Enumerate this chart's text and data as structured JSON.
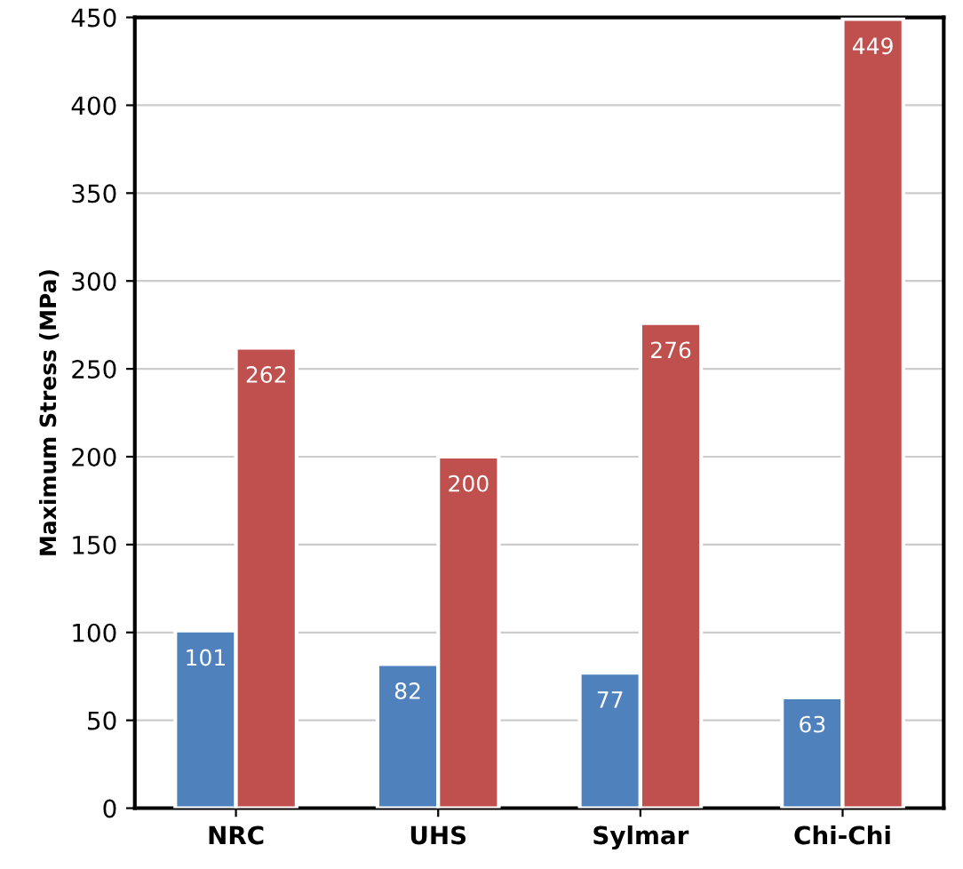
{
  "chart_data": {
    "type": "bar",
    "ylabel": "Maximum Stress (MPa)",
    "categories": [
      "NRC",
      "UHS",
      "Sylmar",
      "Chi-Chi"
    ],
    "series": [
      {
        "color": "#4f81bd",
        "values": [
          101,
          82,
          77,
          63
        ]
      },
      {
        "color": "#c0504d",
        "values": [
          262,
          200,
          276,
          449
        ]
      }
    ],
    "ylim": [
      0,
      450
    ],
    "yticks": [
      0,
      50,
      100,
      150,
      200,
      250,
      300,
      350,
      400,
      450
    ],
    "grid": "y",
    "data_labels": true,
    "legend": false
  }
}
